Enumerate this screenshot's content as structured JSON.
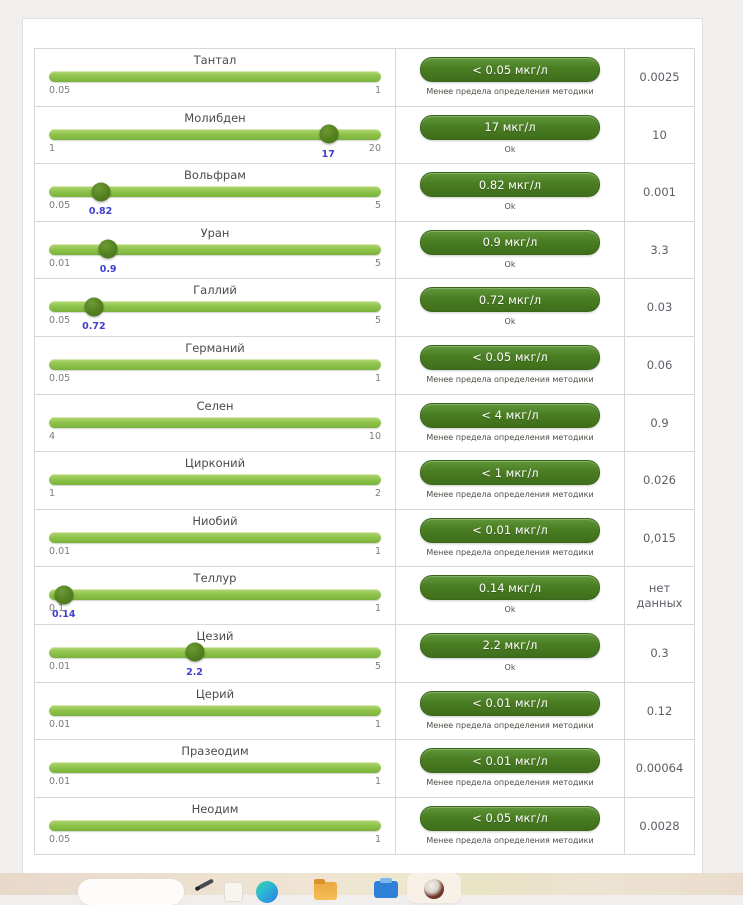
{
  "theme": {
    "bar_highlight": "#b5d878",
    "bar_mid": "#8ec44c",
    "bar_low": "#7ab13a",
    "handle_highlight": "#6d9a35",
    "handle_mid": "#53801f",
    "handle_low": "#44701a",
    "badge_highlight": "#5f973a",
    "badge_mid": "#4a7d22",
    "badge_low": "#3f6e1c",
    "badge_border": "#3c671b",
    "marker_blue": "#4040cf"
  },
  "table": {
    "rows": [
      {
        "name": "Тантал",
        "min": "0.05",
        "max": "1",
        "marker": null,
        "badge": "< 0.05 мкг/л",
        "status": "Менее предела определения методики",
        "value": "0.0025"
      },
      {
        "name": "Молибден",
        "min": "1",
        "max": "20",
        "marker": "17",
        "badge": "17 мкг/л",
        "status": "Ok",
        "value": "10"
      },
      {
        "name": "Вольфрам",
        "min": "0.05",
        "max": "5",
        "marker": "0.82",
        "badge": "0.82 мкг/л",
        "status": "Ok",
        "value": "0.001"
      },
      {
        "name": "Уран",
        "min": "0.01",
        "max": "5",
        "marker": "0.9",
        "badge": "0.9 мкг/л",
        "status": "Ok",
        "value": "3.3"
      },
      {
        "name": "Галлий",
        "min": "0.05",
        "max": "5",
        "marker": "0.72",
        "badge": "0.72 мкг/л",
        "status": "Ok",
        "value": "0.03"
      },
      {
        "name": "Германий",
        "min": "0.05",
        "max": "1",
        "marker": null,
        "badge": "< 0.05 мкг/л",
        "status": "Менее предела определения методики",
        "value": "0.06"
      },
      {
        "name": "Селен",
        "min": "4",
        "max": "10",
        "marker": null,
        "badge": "< 4 мкг/л",
        "status": "Менее предела определения методики",
        "value": "0.9"
      },
      {
        "name": "Цирконий",
        "min": "1",
        "max": "2",
        "marker": null,
        "badge": "< 1 мкг/л",
        "status": "Менее предела определения методики",
        "value": "0.026"
      },
      {
        "name": "Ниобий",
        "min": "0.01",
        "max": "1",
        "marker": null,
        "badge": "< 0.01 мкг/л",
        "status": "Менее предела определения методики",
        "value": "0,015"
      },
      {
        "name": "Теллур",
        "min": "0.1",
        "max": "1",
        "marker": "0.14",
        "badge": "0.14 мкг/л",
        "status": "Ok",
        "value": "нет данных"
      },
      {
        "name": "Цезий",
        "min": "0.01",
        "max": "5",
        "marker": "2.2",
        "badge": "2.2 мкг/л",
        "status": "Ok",
        "value": "0.3"
      },
      {
        "name": "Церий",
        "min": "0.01",
        "max": "1",
        "marker": null,
        "badge": "< 0.01 мкг/л",
        "status": "Менее предела определения методики",
        "value": "0.12"
      },
      {
        "name": "Празеодим",
        "min": "0.01",
        "max": "1",
        "marker": null,
        "badge": "< 0.01 мкг/л",
        "status": "Менее предела определения методики",
        "value": "0.00064"
      },
      {
        "name": "Неодим",
        "min": "0.05",
        "max": "1",
        "marker": null,
        "badge": "< 0.05 мкг/л",
        "status": "Менее предела определения методики",
        "value": "0.0028"
      }
    ]
  },
  "taskbar": {
    "icons": [
      "search-pill",
      "pen-icon",
      "notepad-icon",
      "browser-icon",
      "folder-icon",
      "printer-icon",
      "active-app-icon"
    ]
  }
}
